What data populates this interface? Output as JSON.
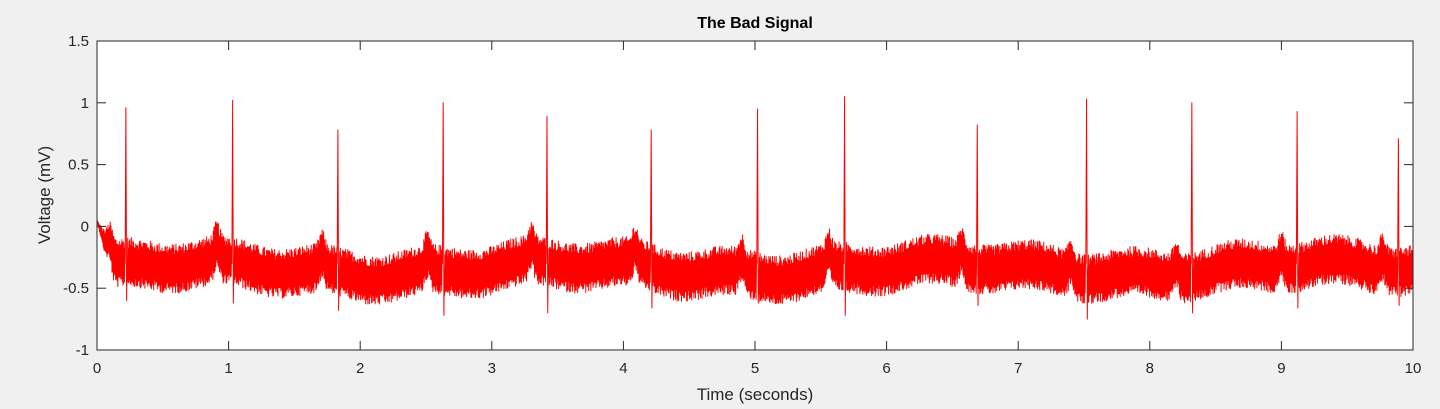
{
  "chart_data": {
    "type": "line",
    "title": "The Bad Signal",
    "xlabel": "Time (seconds)",
    "ylabel": "Voltage (mV)",
    "xlim": [
      0,
      10
    ],
    "ylim": [
      -1,
      1.5
    ],
    "xticks": [
      0,
      1,
      2,
      3,
      4,
      5,
      6,
      7,
      8,
      9,
      10
    ],
    "yticks": [
      -1,
      -0.5,
      0,
      0.5,
      1,
      1.5
    ],
    "xtick_labels": [
      "0",
      "1",
      "2",
      "3",
      "4",
      "5",
      "6",
      "7",
      "8",
      "9",
      "10"
    ],
    "ytick_labels": [
      "-1",
      "-0.5",
      "0",
      "0.5",
      "1",
      "1.5"
    ],
    "grid": false,
    "series": [
      {
        "color": "#ff0000",
        "baseline_mean": -0.35,
        "noise_band": [
          -0.55,
          -0.15
        ],
        "start_values": [
          0.05,
          -0.35
        ],
        "peaks": [
          {
            "t": 0.22,
            "v": 0.96,
            "trough": -0.6
          },
          {
            "t": 1.03,
            "v": 1.02,
            "trough": -0.62
          },
          {
            "t": 1.83,
            "v": 0.78,
            "trough": -0.68
          },
          {
            "t": 2.63,
            "v": 1.0,
            "trough": -0.72
          },
          {
            "t": 3.42,
            "v": 0.89,
            "trough": -0.7
          },
          {
            "t": 4.21,
            "v": 0.78,
            "trough": -0.66
          },
          {
            "t": 5.02,
            "v": 0.95,
            "trough": -0.62
          },
          {
            "t": 5.68,
            "v": 1.05,
            "trough": -0.72
          },
          {
            "t": 6.69,
            "v": 0.82,
            "trough": -0.64
          },
          {
            "t": 7.52,
            "v": 1.03,
            "trough": -0.75
          },
          {
            "t": 8.32,
            "v": 1.0,
            "trough": -0.7
          },
          {
            "t": 9.12,
            "v": 0.93,
            "trough": -0.66
          },
          {
            "t": 9.89,
            "v": 0.71,
            "trough": -0.64
          }
        ]
      }
    ]
  }
}
